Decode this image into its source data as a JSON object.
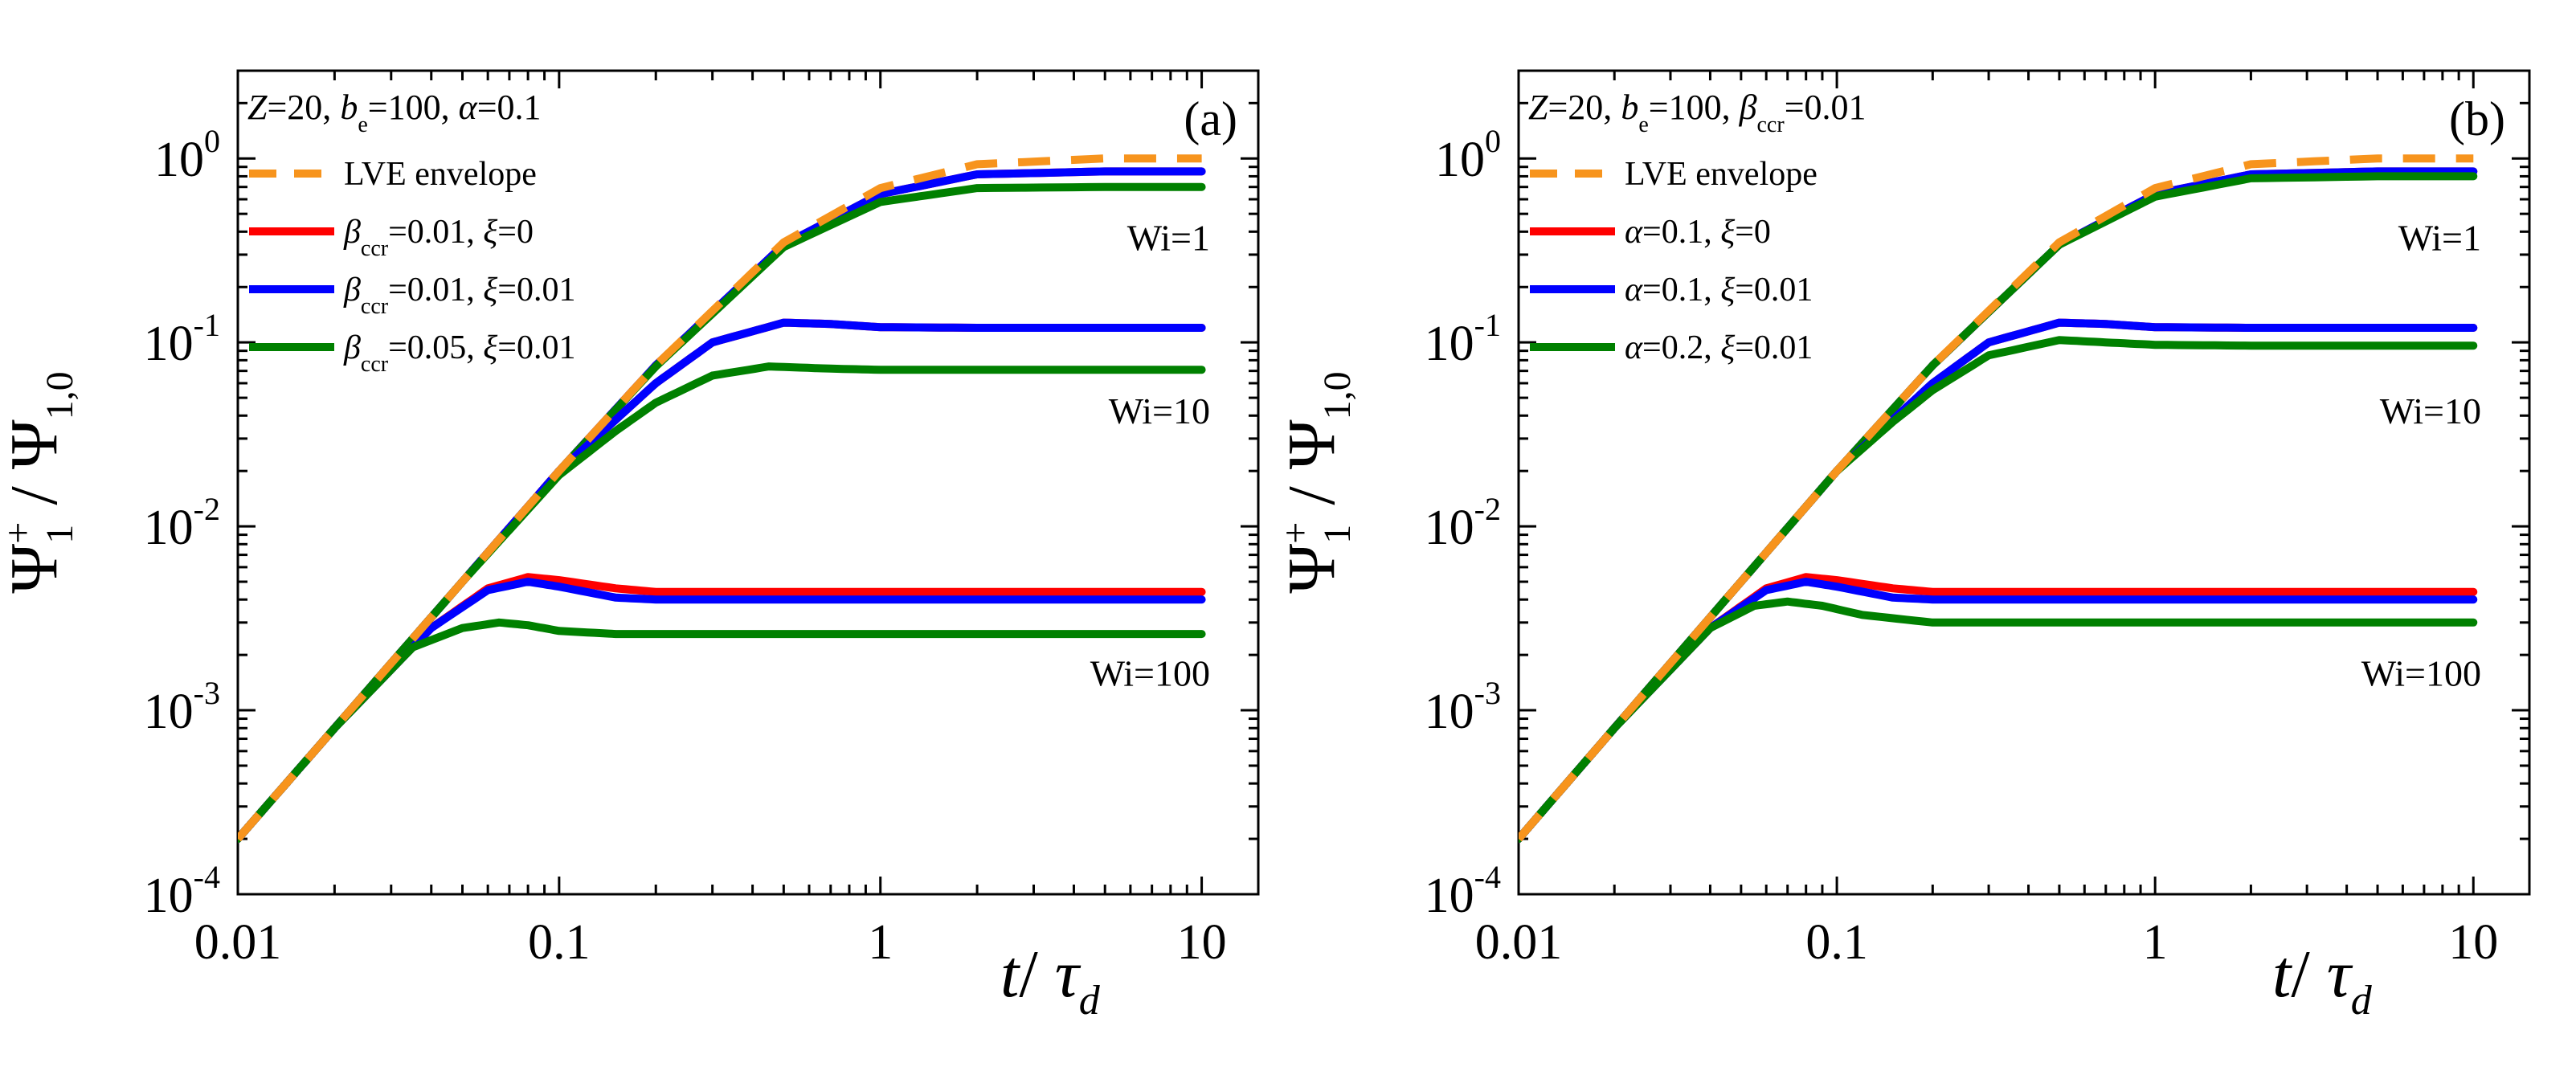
{
  "figure": {
    "ylabel": "Ψ1+ / Ψ1,0",
    "xlabel": "t/ τd"
  },
  "chart_data": [
    {
      "panel": "(a)",
      "type": "line",
      "x_scale": "log",
      "y_scale": "log",
      "xlim": [
        0.01,
        15
      ],
      "ylim": [
        0.0001,
        3
      ],
      "x_ticks": [
        "0.01",
        "0.1",
        "1",
        "10"
      ],
      "y_ticks": [
        "10^-4",
        "10^-3",
        "10^-2",
        "10^-1",
        "10^0"
      ],
      "xlabel": "t/ τd",
      "ylabel": "Ψ1+ / Ψ1,0",
      "parameters": "Z=20, be=100, α=0.1",
      "annotations": [
        "Wi=1",
        "Wi=10",
        "Wi=100"
      ],
      "legend": [
        "LVE envelope",
        "βccr=0.01, ξ=0",
        "βccr=0.01, ξ=0.01",
        "βccr=0.05, ξ=0.01"
      ],
      "series": [
        {
          "name": "LVE envelope",
          "color": "#f7941d",
          "style": "dashed",
          "x": [
            0.01,
            0.02,
            0.05,
            0.1,
            0.2,
            0.5,
            1,
            2,
            5,
            10
          ],
          "y": [
            0.0002,
            0.0008,
            0.005,
            0.02,
            0.075,
            0.35,
            0.69,
            0.93,
            1.0,
            1.0
          ]
        },
        {
          "name": "βccr=0.01, ξ=0 (Wi=1)",
          "color": "#ff0000",
          "x": [
            0.01,
            0.02,
            0.05,
            0.1,
            0.2,
            0.5,
            1,
            2,
            5,
            10
          ],
          "y": [
            0.0002,
            0.0008,
            0.005,
            0.02,
            0.075,
            0.34,
            0.64,
            0.82,
            0.85,
            0.85
          ]
        },
        {
          "name": "βccr=0.01, ξ=0.01 (Wi=1)",
          "color": "#0000ff",
          "x": [
            0.01,
            0.02,
            0.05,
            0.1,
            0.2,
            0.5,
            1,
            2,
            5,
            10
          ],
          "y": [
            0.0002,
            0.0008,
            0.005,
            0.02,
            0.075,
            0.34,
            0.64,
            0.82,
            0.85,
            0.85
          ]
        },
        {
          "name": "βccr=0.05, ξ=0.01 (Wi=1)",
          "color": "#008000",
          "x": [
            0.01,
            0.02,
            0.05,
            0.1,
            0.2,
            0.5,
            1,
            2,
            5,
            10
          ],
          "y": [
            0.0002,
            0.0008,
            0.005,
            0.02,
            0.074,
            0.33,
            0.58,
            0.69,
            0.7,
            0.7
          ]
        },
        {
          "name": "βccr=0.01, ξ=0 (Wi=10)",
          "color": "#ff0000",
          "x": [
            0.01,
            0.02,
            0.05,
            0.1,
            0.15,
            0.2,
            0.3,
            0.5,
            0.7,
            1,
            2,
            10
          ],
          "y": [
            0.0002,
            0.0008,
            0.005,
            0.02,
            0.038,
            0.06,
            0.1,
            0.128,
            0.126,
            0.121,
            0.12,
            0.12
          ]
        },
        {
          "name": "βccr=0.01, ξ=0.01 (Wi=10)",
          "color": "#0000ff",
          "x": [
            0.01,
            0.02,
            0.05,
            0.1,
            0.15,
            0.2,
            0.3,
            0.5,
            0.7,
            1,
            2,
            10
          ],
          "y": [
            0.0002,
            0.0008,
            0.005,
            0.02,
            0.038,
            0.06,
            0.1,
            0.128,
            0.126,
            0.121,
            0.12,
            0.12
          ]
        },
        {
          "name": "βccr=0.05, ξ=0.01 (Wi=10)",
          "color": "#008000",
          "x": [
            0.01,
            0.02,
            0.05,
            0.1,
            0.15,
            0.2,
            0.3,
            0.45,
            0.7,
            1,
            2,
            10
          ],
          "y": [
            0.0002,
            0.0008,
            0.005,
            0.019,
            0.033,
            0.047,
            0.066,
            0.074,
            0.072,
            0.071,
            0.071,
            0.071
          ]
        },
        {
          "name": "βccr=0.01, ξ=0 (Wi=100)",
          "color": "#ff0000",
          "x": [
            0.01,
            0.02,
            0.04,
            0.06,
            0.08,
            0.1,
            0.15,
            0.2,
            0.5,
            1,
            10
          ],
          "y": [
            0.0002,
            0.0008,
            0.0028,
            0.0046,
            0.0053,
            0.0051,
            0.0046,
            0.0044,
            0.0044,
            0.0044,
            0.0044
          ]
        },
        {
          "name": "βccr=0.01, ξ=0.01 (Wi=100)",
          "color": "#0000ff",
          "x": [
            0.01,
            0.02,
            0.04,
            0.06,
            0.08,
            0.1,
            0.15,
            0.2,
            0.5,
            1,
            10
          ],
          "y": [
            0.0002,
            0.0008,
            0.0028,
            0.0045,
            0.005,
            0.0047,
            0.0041,
            0.004,
            0.004,
            0.004,
            0.004
          ]
        },
        {
          "name": "βccr=0.05, ξ=0.01 (Wi=100)",
          "color": "#008000",
          "x": [
            0.01,
            0.02,
            0.035,
            0.05,
            0.065,
            0.08,
            0.1,
            0.15,
            0.2,
            1,
            10
          ],
          "y": [
            0.0002,
            0.0008,
            0.0022,
            0.0028,
            0.003,
            0.0029,
            0.0027,
            0.0026,
            0.0026,
            0.0026,
            0.0026
          ]
        }
      ]
    },
    {
      "panel": "(b)",
      "type": "line",
      "x_scale": "log",
      "y_scale": "log",
      "xlim": [
        0.01,
        15
      ],
      "ylim": [
        0.0001,
        3
      ],
      "x_ticks": [
        "0.01",
        "0.1",
        "1",
        "10"
      ],
      "y_ticks": [
        "10^-4",
        "10^-3",
        "10^-2",
        "10^-1",
        "10^0"
      ],
      "xlabel": "t/ τd",
      "ylabel": "Ψ1+ / Ψ1,0",
      "parameters": "Z=20, be=100, βccr=0.01",
      "annotations": [
        "Wi=1",
        "Wi=10",
        "Wi=100"
      ],
      "legend": [
        "LVE envelope",
        "α=0.1, ξ=0",
        "α=0.1, ξ=0.01",
        "α=0.2, ξ=0.01"
      ],
      "series": [
        {
          "name": "LVE envelope",
          "color": "#f7941d",
          "style": "dashed",
          "x": [
            0.01,
            0.02,
            0.05,
            0.1,
            0.2,
            0.5,
            1,
            2,
            5,
            10
          ],
          "y": [
            0.0002,
            0.0008,
            0.005,
            0.02,
            0.075,
            0.35,
            0.69,
            0.93,
            1.0,
            1.0
          ]
        },
        {
          "name": "α=0.1, ξ=0 (Wi=1)",
          "color": "#ff0000",
          "x": [
            0.01,
            0.02,
            0.05,
            0.1,
            0.2,
            0.5,
            1,
            2,
            5,
            10
          ],
          "y": [
            0.0002,
            0.0008,
            0.005,
            0.02,
            0.075,
            0.34,
            0.64,
            0.82,
            0.85,
            0.85
          ]
        },
        {
          "name": "α=0.1, ξ=0.01 (Wi=1)",
          "color": "#0000ff",
          "x": [
            0.01,
            0.02,
            0.05,
            0.1,
            0.2,
            0.5,
            1,
            2,
            5,
            10
          ],
          "y": [
            0.0002,
            0.0008,
            0.005,
            0.02,
            0.075,
            0.34,
            0.64,
            0.82,
            0.85,
            0.85
          ]
        },
        {
          "name": "α=0.2, ξ=0.01 (Wi=1)",
          "color": "#008000",
          "x": [
            0.01,
            0.02,
            0.05,
            0.1,
            0.2,
            0.5,
            1,
            2,
            5,
            10
          ],
          "y": [
            0.0002,
            0.0008,
            0.005,
            0.02,
            0.075,
            0.34,
            0.62,
            0.78,
            0.8,
            0.8
          ]
        },
        {
          "name": "α=0.1, ξ=0 (Wi=10)",
          "color": "#ff0000",
          "x": [
            0.01,
            0.02,
            0.05,
            0.1,
            0.15,
            0.2,
            0.3,
            0.5,
            0.7,
            1,
            2,
            10
          ],
          "y": [
            0.0002,
            0.0008,
            0.005,
            0.02,
            0.038,
            0.06,
            0.1,
            0.128,
            0.126,
            0.121,
            0.12,
            0.12
          ]
        },
        {
          "name": "α=0.1, ξ=0.01 (Wi=10)",
          "color": "#0000ff",
          "x": [
            0.01,
            0.02,
            0.05,
            0.1,
            0.15,
            0.2,
            0.3,
            0.5,
            0.7,
            1,
            2,
            10
          ],
          "y": [
            0.0002,
            0.0008,
            0.005,
            0.02,
            0.038,
            0.06,
            0.1,
            0.128,
            0.126,
            0.121,
            0.12,
            0.12
          ]
        },
        {
          "name": "α=0.2, ξ=0.01 (Wi=10)",
          "color": "#008000",
          "x": [
            0.01,
            0.02,
            0.05,
            0.1,
            0.15,
            0.2,
            0.3,
            0.5,
            0.7,
            1,
            2,
            10
          ],
          "y": [
            0.0002,
            0.0008,
            0.005,
            0.02,
            0.037,
            0.055,
            0.085,
            0.103,
            0.1,
            0.097,
            0.096,
            0.096
          ]
        },
        {
          "name": "α=0.1, ξ=0 (Wi=100)",
          "color": "#ff0000",
          "x": [
            0.01,
            0.02,
            0.04,
            0.06,
            0.08,
            0.1,
            0.15,
            0.2,
            0.5,
            1,
            10
          ],
          "y": [
            0.0002,
            0.0008,
            0.0028,
            0.0046,
            0.0053,
            0.0051,
            0.0046,
            0.0044,
            0.0044,
            0.0044,
            0.0044
          ]
        },
        {
          "name": "α=0.1, ξ=0.01 (Wi=100)",
          "color": "#0000ff",
          "x": [
            0.01,
            0.02,
            0.04,
            0.06,
            0.08,
            0.1,
            0.15,
            0.2,
            0.5,
            1,
            10
          ],
          "y": [
            0.0002,
            0.0008,
            0.0028,
            0.0045,
            0.005,
            0.0047,
            0.0041,
            0.004,
            0.004,
            0.004,
            0.004
          ]
        },
        {
          "name": "α=0.2, ξ=0.01 (Wi=100)",
          "color": "#008000",
          "x": [
            0.01,
            0.02,
            0.04,
            0.055,
            0.07,
            0.09,
            0.12,
            0.2,
            0.5,
            1,
            10
          ],
          "y": [
            0.0002,
            0.0008,
            0.0028,
            0.0037,
            0.0039,
            0.0037,
            0.0033,
            0.003,
            0.003,
            0.003,
            0.003
          ]
        }
      ]
    }
  ]
}
